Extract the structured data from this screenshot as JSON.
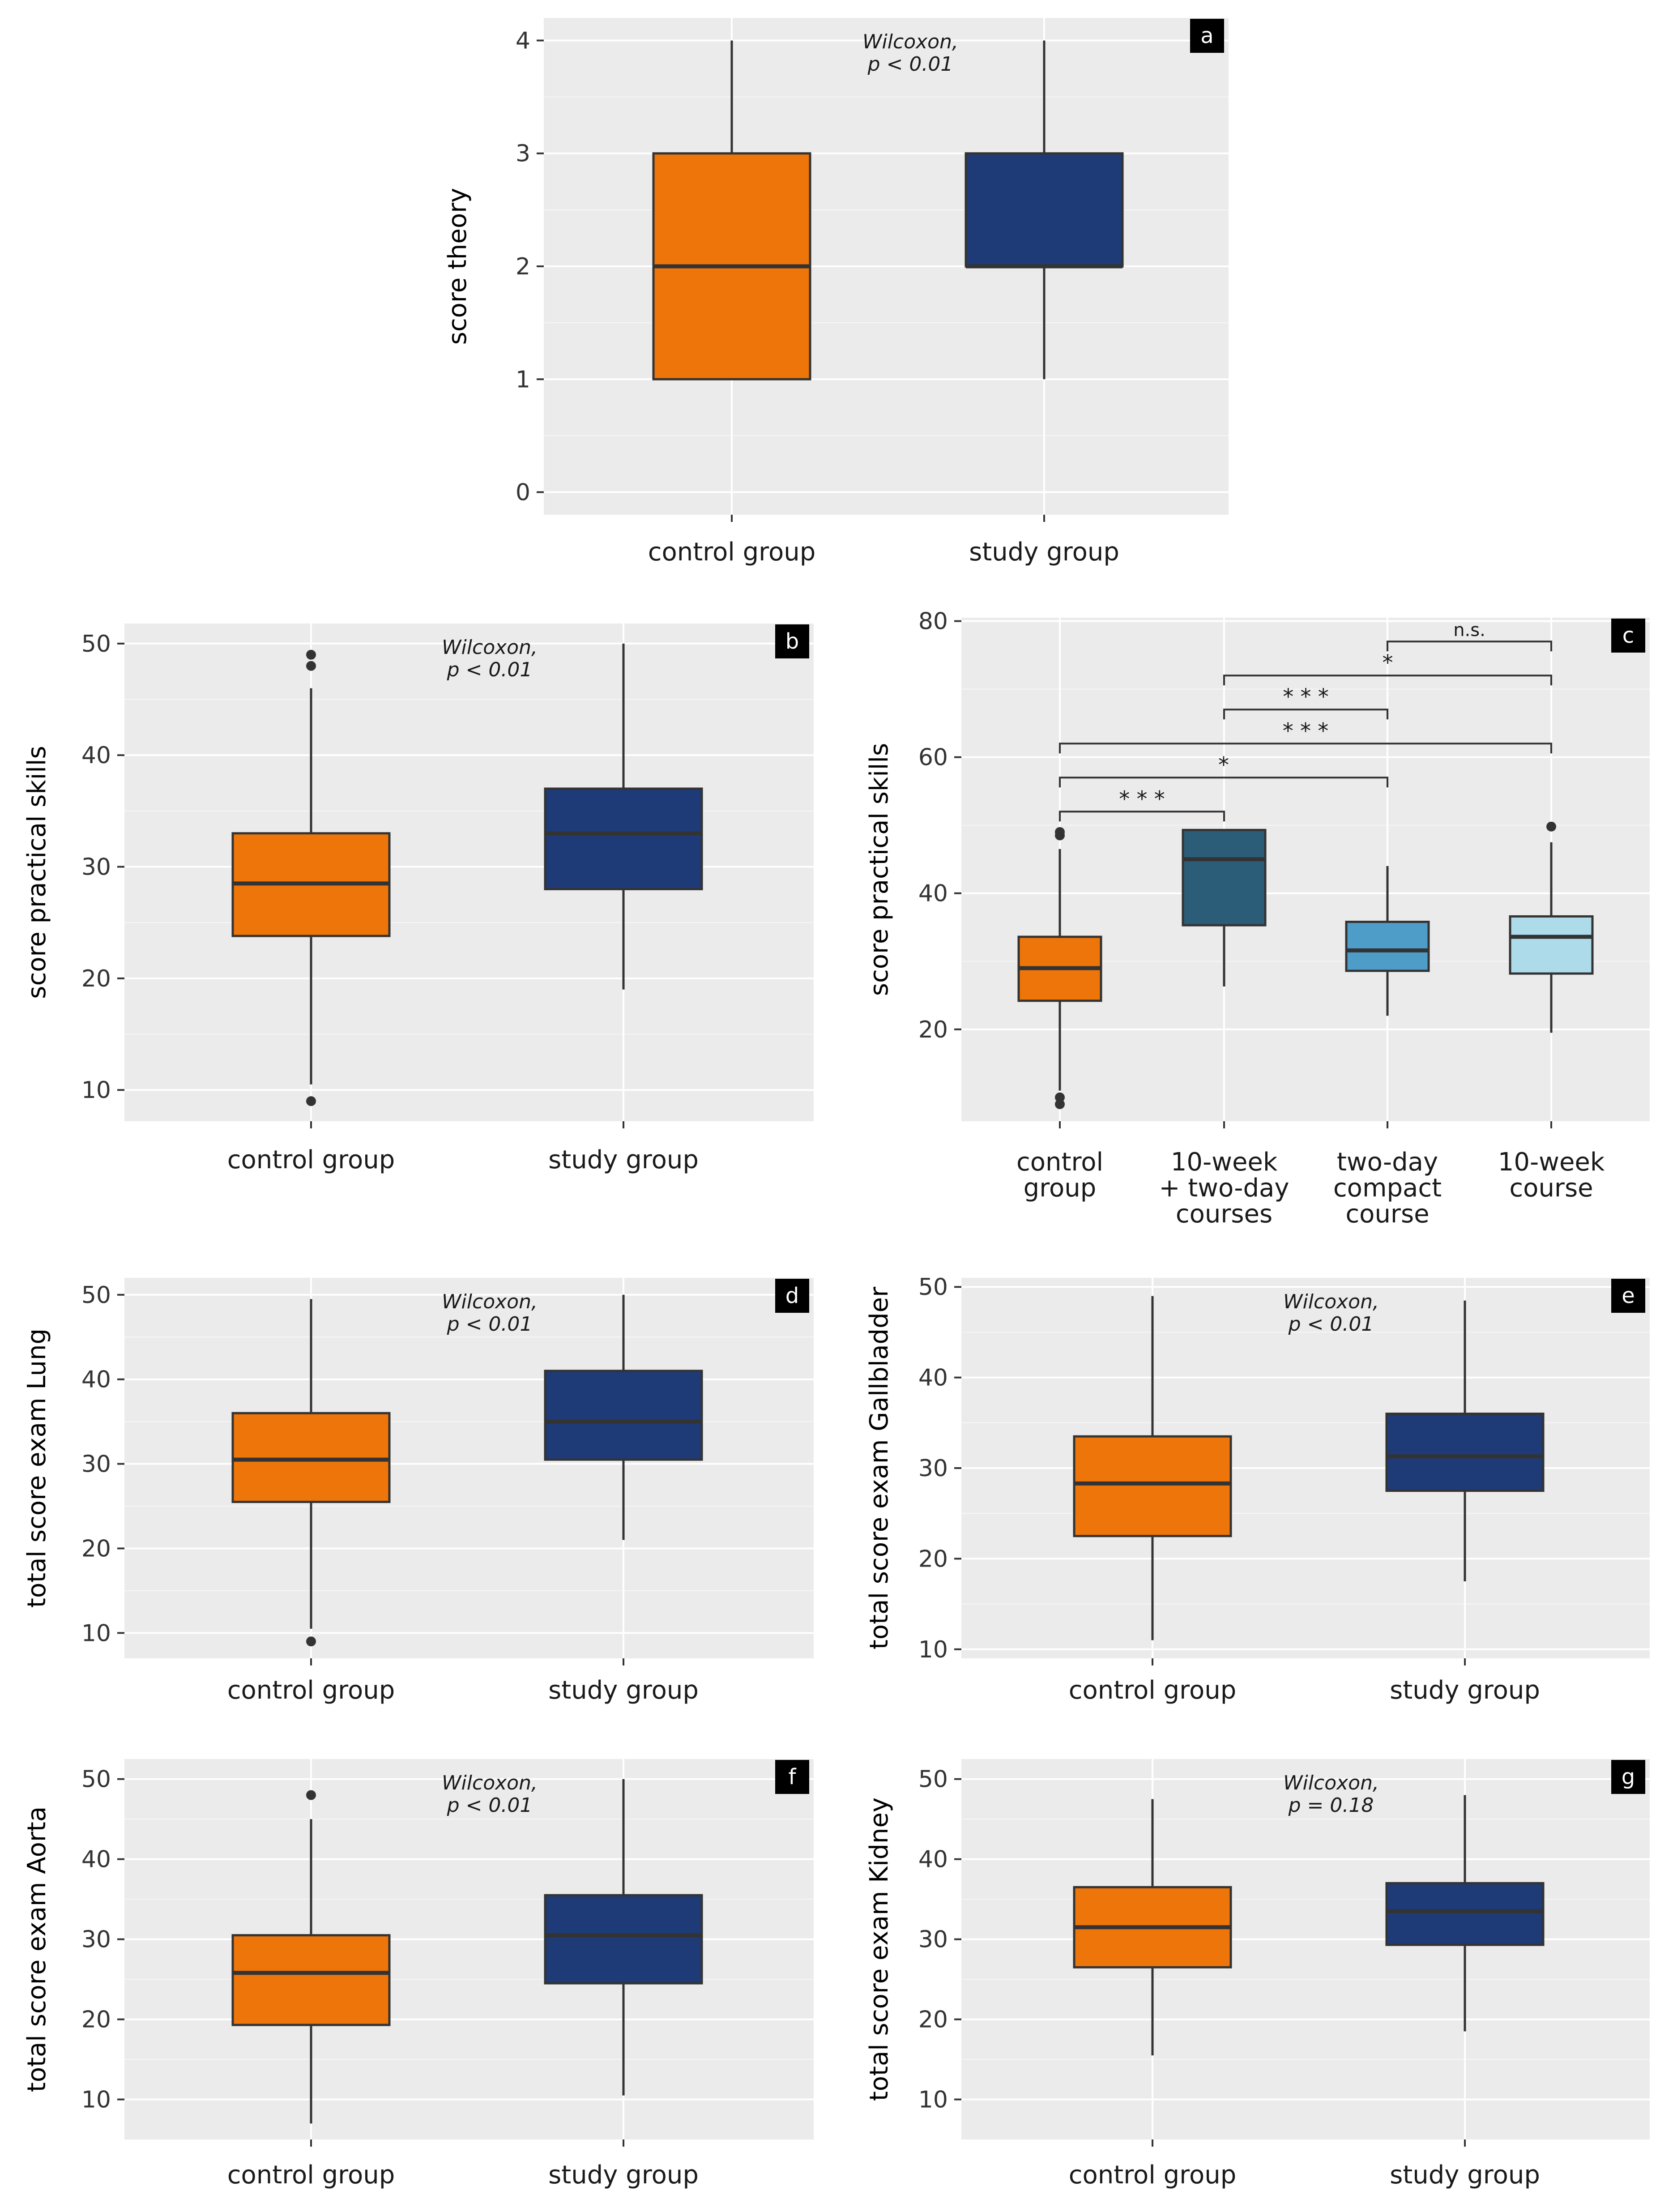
{
  "colors": {
    "control": "#EE7509",
    "study": "#1E3B77",
    "ten_week_two_day": "#2C5D78",
    "two_day_compact": "#4E9DC9",
    "ten_week": "#ADDBE9",
    "panel_bg": "#EBEBEB",
    "grid": "#FFFFFF",
    "whisker": "#333333"
  },
  "chart_data": [
    {
      "panel": "a",
      "type": "box",
      "ylabel": "score theory",
      "ylim": [
        -0.2,
        4.2
      ],
      "yticks": [
        0,
        1,
        2,
        3,
        4
      ],
      "annotation": [
        "Wilcoxon,",
        "p < 0.01"
      ],
      "categories": [
        [
          "control group"
        ],
        [
          "study group"
        ]
      ],
      "series": [
        {
          "name": "control group",
          "color_key": "control",
          "min": 1,
          "q1": 1,
          "median": 2,
          "q3": 3,
          "max": 4,
          "outliers": []
        },
        {
          "name": "study group",
          "color_key": "study",
          "min": 1,
          "q1": 2,
          "median": 2,
          "q3": 3,
          "max": 4,
          "outliers": []
        }
      ]
    },
    {
      "panel": "b",
      "type": "box",
      "ylabel": "score practical skills",
      "ylim": [
        7.2,
        51.8
      ],
      "yticks": [
        10,
        20,
        30,
        40,
        50
      ],
      "annotation": [
        "Wilcoxon,",
        "p < 0.01"
      ],
      "categories": [
        [
          "control group"
        ],
        [
          "study group"
        ]
      ],
      "series": [
        {
          "name": "control group",
          "color_key": "control",
          "min": 10.5,
          "q1": 23.8,
          "median": 28.5,
          "q3": 33,
          "max": 46,
          "outliers": [
            9,
            48,
            49
          ]
        },
        {
          "name": "study group",
          "color_key": "study",
          "min": 19,
          "q1": 28,
          "median": 33,
          "q3": 37,
          "max": 50,
          "outliers": []
        }
      ]
    },
    {
      "panel": "c",
      "type": "box",
      "ylabel": "score practical skills",
      "ylim": [
        6.5,
        80.5
      ],
      "yticks": [
        20,
        40,
        60,
        80
      ],
      "annotation": [],
      "categories": [
        [
          "control",
          "group"
        ],
        [
          "10-week",
          "+ two-day",
          "courses"
        ],
        [
          "two-day",
          "compact",
          "course"
        ],
        [
          "10-week",
          "course"
        ]
      ],
      "series": [
        {
          "name": "control group",
          "color_key": "control",
          "min": 11,
          "q1": 24.2,
          "median": 29,
          "q3": 33.6,
          "max": 46.5,
          "outliers": [
            9,
            10,
            48.5,
            49
          ]
        },
        {
          "name": "10-week + two-day courses",
          "color_key": "ten_week_two_day",
          "min": 26.3,
          "q1": 35.3,
          "median": 45,
          "q3": 49.3,
          "max": 49.3,
          "outliers": []
        },
        {
          "name": "two-day compact course",
          "color_key": "two_day_compact",
          "min": 22,
          "q1": 28.6,
          "median": 31.6,
          "q3": 35.8,
          "max": 44,
          "outliers": []
        },
        {
          "name": "10-week course",
          "color_key": "ten_week",
          "min": 19.5,
          "q1": 28.2,
          "median": 33.6,
          "q3": 36.6,
          "max": 47.5,
          "outliers": [
            49.8
          ]
        }
      ],
      "comparisons": [
        {
          "from": 0,
          "to": 1,
          "y": 52,
          "label": "* * *"
        },
        {
          "from": 0,
          "to": 2,
          "y": 57,
          "label": "*"
        },
        {
          "from": 0,
          "to": 3,
          "y": 62,
          "label": "* * *"
        },
        {
          "from": 1,
          "to": 2,
          "y": 67,
          "label": "* * *"
        },
        {
          "from": 1,
          "to": 3,
          "y": 72,
          "label": "*"
        },
        {
          "from": 2,
          "to": 3,
          "y": 77,
          "label": "n.s."
        }
      ]
    },
    {
      "panel": "d",
      "type": "box",
      "ylabel": "total score exam Lung",
      "ylim": [
        7,
        52
      ],
      "yticks": [
        10,
        20,
        30,
        40,
        50
      ],
      "annotation": [
        "Wilcoxon,",
        "p < 0.01"
      ],
      "categories": [
        [
          "control group"
        ],
        [
          "study group"
        ]
      ],
      "series": [
        {
          "name": "control group",
          "color_key": "control",
          "min": 10.5,
          "q1": 25.5,
          "median": 30.5,
          "q3": 36,
          "max": 49.5,
          "outliers": [
            9
          ]
        },
        {
          "name": "study group",
          "color_key": "study",
          "min": 21,
          "q1": 30.5,
          "median": 35,
          "q3": 41,
          "max": 50,
          "outliers": []
        }
      ]
    },
    {
      "panel": "e",
      "type": "box",
      "ylabel": "total score exam Gallbladder",
      "ylim": [
        9,
        51
      ],
      "yticks": [
        10,
        20,
        30,
        40,
        50
      ],
      "annotation": [
        "Wilcoxon,",
        "p < 0.01"
      ],
      "categories": [
        [
          "control group"
        ],
        [
          "study group"
        ]
      ],
      "series": [
        {
          "name": "control group",
          "color_key": "control",
          "min": 11,
          "q1": 22.5,
          "median": 28.3,
          "q3": 33.5,
          "max": 49,
          "outliers": []
        },
        {
          "name": "study group",
          "color_key": "study",
          "min": 17.5,
          "q1": 27.5,
          "median": 31.3,
          "q3": 36,
          "max": 48.5,
          "outliers": []
        }
      ]
    },
    {
      "panel": "f",
      "type": "box",
      "ylabel": "total score exam Aorta",
      "ylim": [
        5,
        52.5
      ],
      "yticks": [
        10,
        20,
        30,
        40,
        50
      ],
      "annotation": [
        "Wilcoxon,",
        "p < 0.01"
      ],
      "categories": [
        [
          "control group"
        ],
        [
          "study group"
        ]
      ],
      "series": [
        {
          "name": "control group",
          "color_key": "control",
          "min": 7,
          "q1": 19.3,
          "median": 25.8,
          "q3": 30.5,
          "max": 45,
          "outliers": [
            48
          ]
        },
        {
          "name": "study group",
          "color_key": "study",
          "min": 10.5,
          "q1": 24.5,
          "median": 30.5,
          "q3": 35.5,
          "max": 50,
          "outliers": []
        }
      ]
    },
    {
      "panel": "g",
      "type": "box",
      "ylabel": "total score exam Kidney",
      "ylim": [
        5,
        52.5
      ],
      "yticks": [
        10,
        20,
        30,
        40,
        50
      ],
      "annotation": [
        "Wilcoxon,",
        "p = 0.18"
      ],
      "categories": [
        [
          "control group"
        ],
        [
          "study group"
        ]
      ],
      "series": [
        {
          "name": "control group",
          "color_key": "control",
          "min": 15.5,
          "q1": 26.5,
          "median": 31.5,
          "q3": 36.5,
          "max": 47.5,
          "outliers": []
        },
        {
          "name": "study group",
          "color_key": "study",
          "min": 18.5,
          "q1": 29.3,
          "median": 33.5,
          "q3": 37,
          "max": 48,
          "outliers": []
        }
      ]
    }
  ]
}
